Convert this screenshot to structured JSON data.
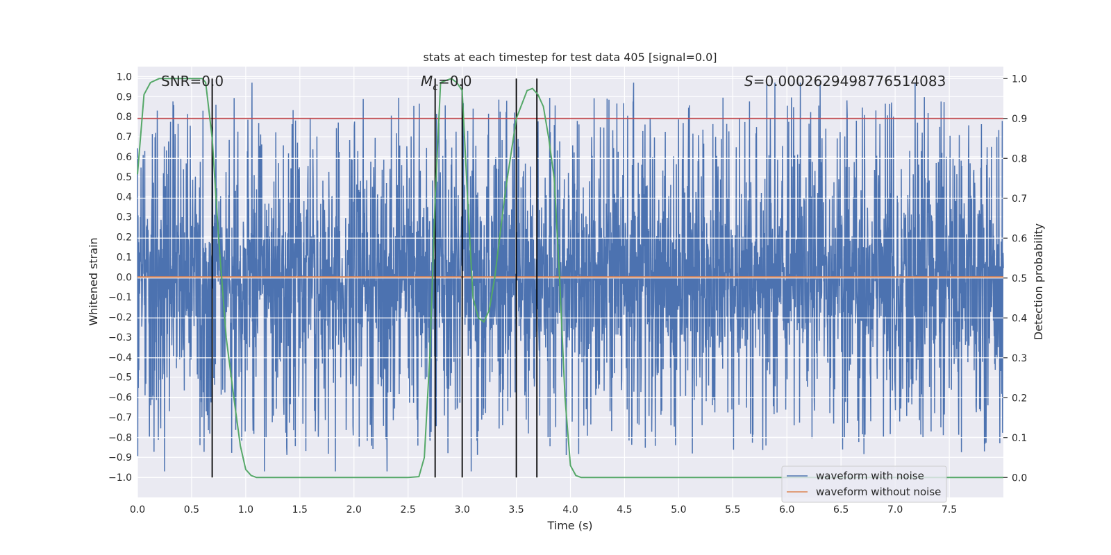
{
  "chart_data": {
    "type": "line",
    "title": "stats at each timestep for test data 405 [signal=0.0]",
    "xlabel": "Time (s)",
    "ylabel": "Whitened strain",
    "ylabel_right": "Detection probability",
    "xlim": [
      0.0,
      8.0
    ],
    "ylim": [
      -1.1,
      1.05
    ],
    "ylim_right": [
      -0.05,
      1.03
    ],
    "x_ticks": [
      "0.0",
      "0.5",
      "1.0",
      "1.5",
      "2.0",
      "2.5",
      "3.0",
      "3.5",
      "4.0",
      "4.5",
      "5.0",
      "5.5",
      "6.0",
      "6.5",
      "7.0",
      "7.5"
    ],
    "y_ticks": [
      "1.0",
      "0.9",
      "0.8",
      "0.7",
      "0.6",
      "0.5",
      "0.4",
      "0.3",
      "0.2",
      "0.1",
      "0.0",
      "−0.1",
      "−0.2",
      "−0.3",
      "−0.4",
      "−0.5",
      "−0.6",
      "−0.7",
      "−0.8",
      "−0.9",
      "−1.0"
    ],
    "y_tick_values": [
      1.0,
      0.9,
      0.8,
      0.7,
      0.6,
      0.5,
      0.4,
      0.3,
      0.2,
      0.1,
      0.0,
      -0.1,
      -0.2,
      -0.3,
      -0.4,
      -0.5,
      -0.6,
      -0.7,
      -0.8,
      -0.9,
      -1.0
    ],
    "y2_ticks": [
      "1.0",
      "0.9",
      "0.8",
      "0.7",
      "0.6",
      "0.5",
      "0.4",
      "0.3",
      "0.2",
      "0.1",
      "0.0"
    ],
    "y2_tick_values": [
      1.0,
      0.9,
      0.8,
      0.7,
      0.6,
      0.5,
      0.4,
      0.3,
      0.2,
      0.1,
      0.0
    ],
    "annotations": {
      "snr": "SNR=0.0",
      "mc_symbol": "M",
      "mc_sub": "c",
      "mc_value": "=0.0",
      "s_symbol": "S",
      "s_value": "=0.0002629498776514083"
    },
    "threshold": 0.9,
    "vertical_lines": [
      0.69,
      2.75,
      3.0,
      3.5,
      3.69
    ],
    "series": [
      {
        "name": "waveform with noise",
        "color": "#4c72b0",
        "axis": "left",
        "kind": "noise",
        "duration": 8.0,
        "samples": 3200,
        "seed": 405,
        "core_amplitude": 0.42,
        "peak_max": 0.97,
        "trough_min": -1.0
      },
      {
        "name": "waveform without noise",
        "color": "#dd8452",
        "axis": "left",
        "x": [
          0.0,
          8.0
        ],
        "y": [
          0.0,
          0.0
        ]
      },
      {
        "name": "detection probability",
        "color": "#55a868",
        "axis": "right",
        "x": [
          0.0,
          0.06,
          0.12,
          0.2,
          0.3,
          0.45,
          0.6,
          0.63,
          0.69,
          0.75,
          0.82,
          0.9,
          0.95,
          1.0,
          1.05,
          1.1,
          1.2,
          1.35,
          1.5,
          1.7,
          2.0,
          2.3,
          2.5,
          2.6,
          2.65,
          2.7,
          2.75,
          2.8,
          2.85,
          2.9,
          2.95,
          3.0,
          3.05,
          3.1,
          3.15,
          3.2,
          3.25,
          3.3,
          3.4,
          3.5,
          3.6,
          3.65,
          3.7,
          3.75,
          3.8,
          3.85,
          3.9,
          3.95,
          4.0,
          4.05,
          4.1,
          4.5,
          5.0,
          6.0,
          7.0,
          7.5,
          8.0
        ],
        "y": [
          0.76,
          0.96,
          0.99,
          1.0,
          1.0,
          1.0,
          1.0,
          0.99,
          0.85,
          0.6,
          0.35,
          0.18,
          0.08,
          0.02,
          0.005,
          0.0,
          0.0,
          0.0,
          0.0,
          0.0,
          0.0,
          0.0,
          0.0,
          0.002,
          0.05,
          0.3,
          0.7,
          0.99,
          0.995,
          1.0,
          0.99,
          0.97,
          0.7,
          0.45,
          0.4,
          0.39,
          0.42,
          0.5,
          0.72,
          0.9,
          0.97,
          0.975,
          0.96,
          0.93,
          0.85,
          0.75,
          0.5,
          0.2,
          0.03,
          0.005,
          0.0,
          0.0,
          0.0,
          0.0,
          0.0,
          0.0,
          0.0
        ]
      }
    ],
    "legend_position": "bottom-right"
  }
}
